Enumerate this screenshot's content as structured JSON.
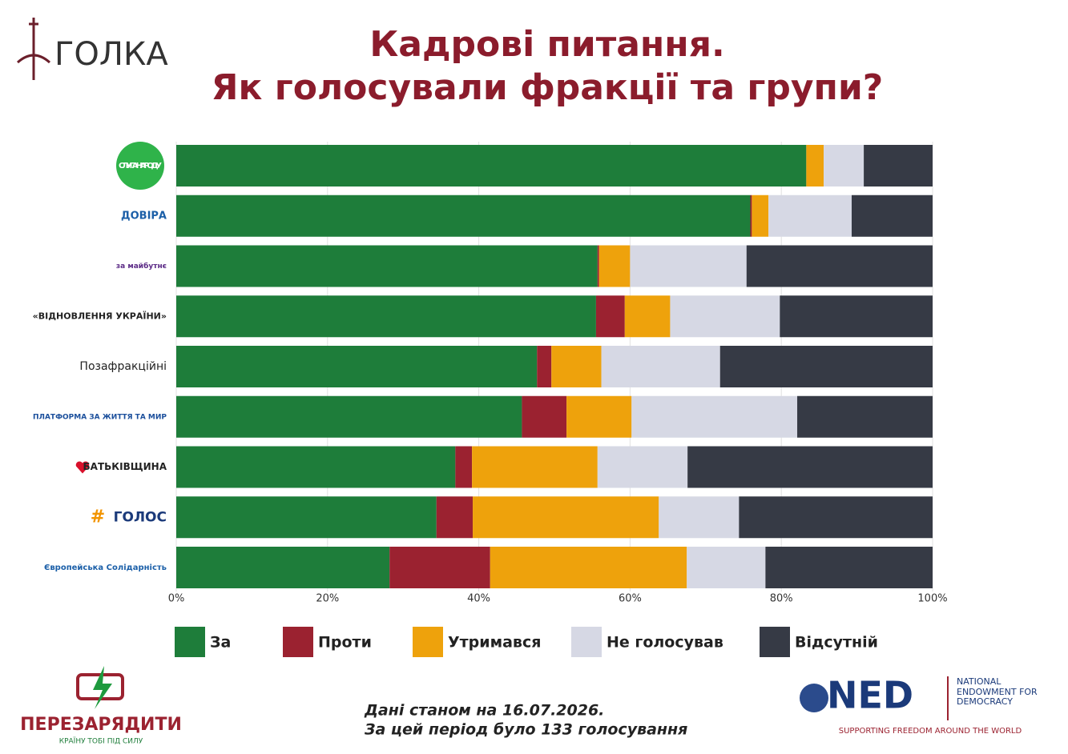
{
  "header": {
    "logo": "ГОЛКА"
  },
  "chart_data": {
    "type": "stacked-bar-horizontal",
    "title": "Кадрові питання.",
    "subtitle": "Як голосували фракції та групи?",
    "categories": [
      "СЛУГА НАРОДУ",
      "ДОВІРА",
      "за майбутнє",
      "«ВІДНОВЛЕННЯ УКРАЇНИ»",
      "Позафракційні",
      "ПЛАТФОРМА ЗА ЖИТТЯ ТА МИР",
      "БАТЬКІВЩИНА",
      "ГОЛОС",
      "Європейська Солідарність"
    ],
    "series": [
      {
        "name": "За",
        "color": "#1e7d3a",
        "values": [
          83.3,
          75.9,
          55.7,
          55.5,
          47.7,
          45.7,
          36.9,
          34.4,
          28.2
        ]
      },
      {
        "name": "Проти",
        "color": "#9b2230",
        "values": [
          0,
          0.2,
          0.2,
          3.8,
          1.9,
          5.9,
          2.2,
          4.8,
          13.3
        ]
      },
      {
        "name": "Утримався",
        "color": "#eea20c",
        "values": [
          2.3,
          2.2,
          4.1,
          6.0,
          6.6,
          8.6,
          16.6,
          24.6,
          26.0
        ]
      },
      {
        "name": "Не голосував",
        "color": "#d6d8e4",
        "values": [
          5.3,
          11.0,
          15.4,
          14.5,
          15.7,
          21.9,
          11.9,
          10.6,
          10.4
        ]
      },
      {
        "name": "Відсутній",
        "color": "#363a45",
        "values": [
          9.1,
          10.7,
          24.6,
          20.2,
          28.1,
          17.9,
          32.4,
          25.6,
          22.1
        ]
      }
    ],
    "xlim": [
      0,
      100
    ],
    "xticks": [
      {
        "value": 0,
        "label": "0%"
      },
      {
        "value": 20,
        "label": "20%"
      },
      {
        "value": 40,
        "label": "40%"
      },
      {
        "value": 60,
        "label": "60%"
      },
      {
        "value": 80,
        "label": "80%"
      },
      {
        "value": 100,
        "label": "100%"
      }
    ],
    "grid": true
  },
  "footer": {
    "note_line1": "Дані станом на 16.07.2026.",
    "note_line2": "За цей період було 133 голосування",
    "left_logo": "ПЕРЕЗАРЯДИТИ",
    "left_slogan": "КРАЇНУ ТОБІ ПІД СИЛУ",
    "right_logo": "NED",
    "right_name": "NATIONAL ENDOWMENT FOR DEMOCRACY",
    "right_slogan": "SUPPORTING FREEDOM AROUND THE WORLD"
  }
}
